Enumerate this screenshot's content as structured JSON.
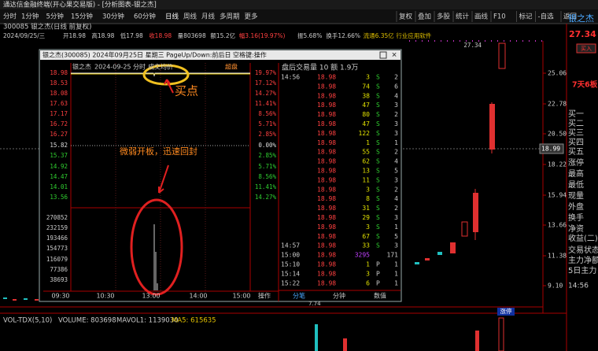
{
  "window_title": "通达信金融终端(开心果交易版) - [分析图表-银之杰]",
  "toolbar": {
    "periods": [
      "分时",
      "1分钟",
      "5分钟",
      "15分钟",
      "30分钟",
      "60分钟",
      "日线",
      "周线",
      "月线",
      "多周期",
      "更多"
    ],
    "tools": [
      "复权",
      "叠加",
      "多股",
      "统计",
      "画线",
      "F10",
      "标记",
      "-自选",
      "返回"
    ]
  },
  "stock_header": "300085 银之杰(日线 前复权)",
  "quote_line": [
    "2024/09/25/三",
    "开18.98",
    "高18.98",
    "低17.98",
    "收18.98",
    "量803698",
    "额15.2亿",
    "幅3.16(19.97%)",
    "振5.68%",
    "换手12.66%",
    "流通6.35亿",
    "行业应用软件"
  ],
  "main_chart": {
    "price_axis": [
      "25.06",
      "22.78",
      "20.50",
      "18.22",
      "15.94",
      "13.66",
      "11.38",
      "9.10"
    ],
    "current_price": "18.99",
    "high_marker": "27.34",
    "bottom_labels": [
      "7.74",
      "涨停"
    ]
  },
  "volume_panel": {
    "label": "VOL-TDX(5,10)",
    "volume": "VOLUME: 803698",
    "mavol": "MAVOL1: 1139030",
    "ma5": "MA5: 615635"
  },
  "side_panel": {
    "name": "银之杰",
    "price": "27.34",
    "buy_button": "买入",
    "streak": "7天6板",
    "fields": [
      "买一",
      "买二",
      "买三",
      "买四",
      "买五",
      "涨停",
      "最高",
      "最低",
      "现量",
      "外盘",
      "换手",
      "净资",
      "收益(二)",
      "交易状态",
      "主力净额",
      "5日主力"
    ],
    "time": "14:56"
  },
  "popup": {
    "title": "银之杰(300085) 2024年09月25日 星期三 PageUp/Down:前后日 空格键:操作",
    "chart_header": {
      "name": "银之杰",
      "date": "2024-09-25 分时",
      "mode": "成交均价",
      "option": "超盘"
    },
    "price_labels": [
      "18.98",
      "18.53",
      "18.08",
      "17.63",
      "17.17",
      "16.72",
      "16.27",
      "15.82",
      "15.37",
      "14.92",
      "14.47",
      "14.01",
      "13.56"
    ],
    "pct_labels": [
      "19.97%",
      "17.12%",
      "14.27%",
      "11.41%",
      "8.56%",
      "5.71%",
      "2.85%",
      "0.00%",
      "2.85%",
      "5.71%",
      "8.56%",
      "11.41%",
      "14.27%"
    ],
    "volume_labels": [
      "270852",
      "232159",
      "193466",
      "154773",
      "116079",
      "77386",
      "38693"
    ],
    "time_labels": [
      "09:30",
      "10:30",
      "13:00",
      "14:00",
      "15:00",
      "操作"
    ],
    "trades_header": "盘后交易量 10 额 1.9万",
    "trades": [
      [
        "14:56",
        "18.98",
        "3",
        "S",
        "2"
      ],
      [
        null,
        "18.98",
        "74",
        "S",
        "6"
      ],
      [
        null,
        "18.98",
        "38",
        "S",
        "4"
      ],
      [
        null,
        "18.98",
        "47",
        "S",
        "3"
      ],
      [
        null,
        "18.98",
        "80",
        "S",
        "2"
      ],
      [
        null,
        "18.98",
        "47",
        "S",
        "3"
      ],
      [
        null,
        "18.98",
        "122",
        "S",
        "3"
      ],
      [
        null,
        "18.98",
        "1",
        "S",
        "1"
      ],
      [
        null,
        "18.98",
        "55",
        "S",
        "2"
      ],
      [
        null,
        "18.98",
        "62",
        "S",
        "4"
      ],
      [
        null,
        "18.98",
        "13",
        "S",
        "5"
      ],
      [
        null,
        "18.98",
        "11",
        "S",
        "3"
      ],
      [
        null,
        "18.98",
        "3",
        "S",
        "2"
      ],
      [
        null,
        "18.98",
        "8",
        "S",
        "4"
      ],
      [
        null,
        "18.98",
        "31",
        "S",
        "2"
      ],
      [
        null,
        "18.98",
        "29",
        "S",
        "3"
      ],
      [
        null,
        "18.98",
        "3",
        "S",
        "1"
      ],
      [
        null,
        "18.98",
        "67",
        "S",
        "5"
      ],
      [
        "14:57",
        "18.98",
        "33",
        "S",
        "3"
      ],
      [
        "15:00",
        "18.98",
        "3295",
        null,
        "171"
      ],
      [
        "15:10",
        "18.98",
        "1",
        "P",
        "1"
      ],
      [
        "15:14",
        "18.98",
        "3",
        "P",
        "1"
      ],
      [
        "15:22",
        "18.98",
        "6",
        "P",
        "1"
      ]
    ],
    "tabs": [
      "分笔",
      "分钟",
      "数值"
    ]
  },
  "annotations": {
    "buy_point": "买点",
    "note": "微弱开板，迅速回封"
  }
}
